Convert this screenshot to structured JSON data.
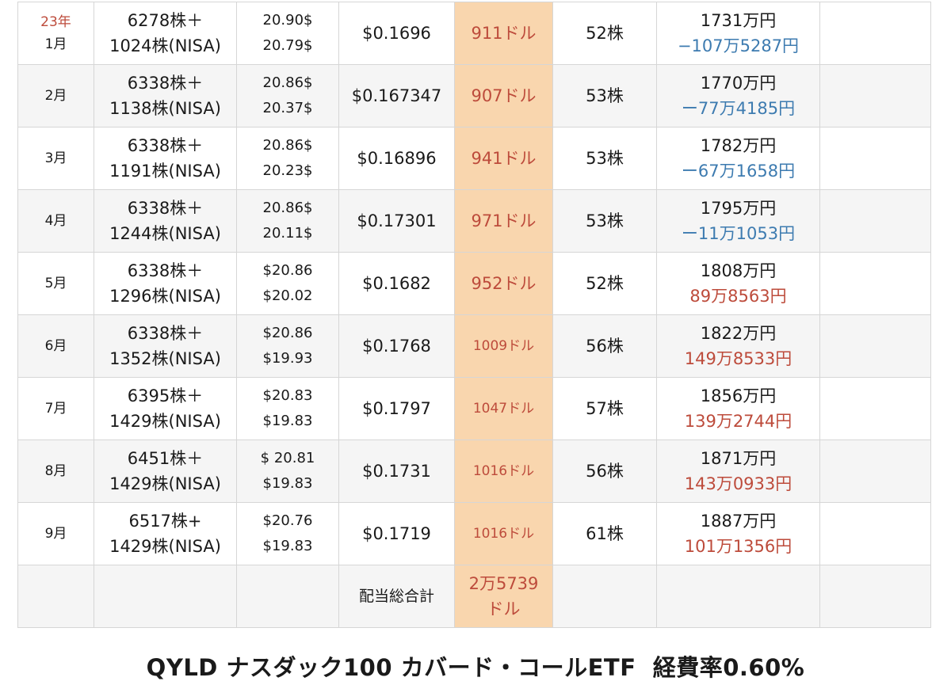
{
  "rows": [
    {
      "year": "23年",
      "month": "1月",
      "shares1": "6278株＋",
      "shares2": "1024株(NISA)",
      "price1": "20.90$",
      "price2": "20.79$",
      "dps": "$0.1696",
      "dividend": "911ドル",
      "div_small": false,
      "bought": "52株",
      "value": "1731万円",
      "pl": "−107万5287円",
      "pl_sign": "neg"
    },
    {
      "year": "",
      "month": "2月",
      "shares1": "6338株＋",
      "shares2": "1138株(NISA)",
      "price1": "20.86$",
      "price2": "20.37$",
      "dps": "$0.167347",
      "dividend": "907ドル",
      "div_small": false,
      "bought": "53株",
      "value": "1770万円",
      "pl": "ー77万4185円",
      "pl_sign": "neg"
    },
    {
      "year": "",
      "month": "3月",
      "shares1": "6338株＋",
      "shares2": "1191株(NISA)",
      "price1": "20.86$",
      "price2": "20.23$",
      "dps": "$0.16896",
      "dividend": "941ドル",
      "div_small": false,
      "bought": "53株",
      "value": "1782万円",
      "pl": "ー67万1658円",
      "pl_sign": "neg"
    },
    {
      "year": "",
      "month": "4月",
      "shares1": "6338株＋",
      "shares2": "1244株(NISA)",
      "price1": "20.86$",
      "price2": "20.11$",
      "dps": "$0.17301",
      "dividend": "971ドル",
      "div_small": false,
      "bought": "53株",
      "value": "1795万円",
      "pl": "ー11万1053円",
      "pl_sign": "neg"
    },
    {
      "year": "",
      "month": "5月",
      "shares1": "6338株＋",
      "shares2": "1296株(NISA)",
      "price1": "$20.86",
      "price2": "$20.02",
      "dps": "$0.1682",
      "dividend": "952ドル",
      "div_small": false,
      "bought": "52株",
      "value": "1808万円",
      "pl": "89万8563円",
      "pl_sign": "pos"
    },
    {
      "year": "",
      "month": "6月",
      "shares1": "6338株＋",
      "shares2": "1352株(NISA)",
      "price1": "$20.86",
      "price2": "$19.93",
      "dps": "$0.1768",
      "dividend": "1009ドル",
      "div_small": true,
      "bought": "56株",
      "value": "1822万円",
      "pl": "149万8533円",
      "pl_sign": "pos"
    },
    {
      "year": "",
      "month": "7月",
      "shares1": "6395株＋",
      "shares2": "1429株(NISA)",
      "price1": "$20.83",
      "price2": "$19.83",
      "dps": "$0.1797",
      "dividend": "1047ドル",
      "div_small": true,
      "bought": "57株",
      "value": "1856万円",
      "pl": "139万2744円",
      "pl_sign": "pos"
    },
    {
      "year": "",
      "month": "8月",
      "shares1": "6451株＋",
      "shares2": "1429株(NISA)",
      "price1": "$ 20.81",
      "price2": "$19.83",
      "dps": "$0.1731",
      "dividend": "1016ドル",
      "div_small": true,
      "bought": "56株",
      "value": "1871万円",
      "pl": "143万0933円",
      "pl_sign": "pos"
    },
    {
      "year": "",
      "month": "9月",
      "shares1": "6517株+",
      "shares2": "1429株(NISA)",
      "price1": "$20.76",
      "price2": "$19.83",
      "dps": "$0.1719",
      "dividend": "1016ドル",
      "div_small": true,
      "bought": "61株",
      "value": "1887万円",
      "pl": "101万1356円",
      "pl_sign": "pos"
    }
  ],
  "total": {
    "label": "配当総合計",
    "value1": "2万5739",
    "value2": "ドル"
  },
  "caption": "QYLD ナスダック100 カバード・コールETF  経費率0.60%",
  "colors": {
    "dividend_bg": "#f9d6ae",
    "red": "#bd4b3b",
    "blue": "#3d7bb0",
    "alt_row": "#f5f5f5"
  }
}
